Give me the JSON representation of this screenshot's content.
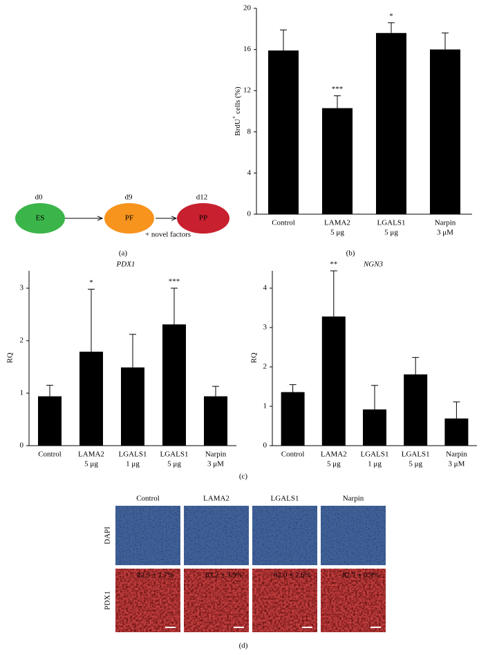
{
  "diagram": {
    "nodes": [
      {
        "label": "ES",
        "day": "d0"
      },
      {
        "label": "PF",
        "day": "d9"
      },
      {
        "label": "PP",
        "day": "d12"
      }
    ],
    "note": "+ novel factors"
  },
  "chart_data": [
    {
      "type": "bar",
      "y_label": [
        "BrdU",
        "+",
        " cells (%)"
      ],
      "categories": [
        [
          "Control"
        ],
        [
          "LAMA2",
          "5 μg"
        ],
        [
          "LGALS1",
          "5 μg"
        ],
        [
          "Narpin",
          "3 μM"
        ]
      ],
      "values": [
        15.9,
        10.3,
        17.6,
        16.0
      ],
      "errors": [
        2.0,
        1.2,
        1.0,
        1.6
      ],
      "annotations": [
        null,
        "***",
        "*",
        null
      ],
      "color": "#000000",
      "ylim": [
        0,
        20
      ],
      "yticks": [
        0,
        4,
        8,
        12,
        16,
        20
      ]
    },
    {
      "type": "bar",
      "title": "PDX1",
      "y_label": "RQ",
      "categories": [
        [
          "Control"
        ],
        [
          "LAMA2",
          "5 μg"
        ],
        [
          "LGALS1",
          "1 μg"
        ],
        [
          "LGALS1",
          "5 μg"
        ],
        [
          "Narpin",
          "3 μM"
        ]
      ],
      "values": [
        0.94,
        1.79,
        1.49,
        2.31,
        0.94
      ],
      "errors": [
        0.21,
        1.19,
        0.63,
        0.69,
        0.19
      ],
      "annotations": [
        null,
        "*",
        null,
        "***",
        null
      ],
      "color": "#000000",
      "ylim": [
        0,
        3.33
      ],
      "yticks": [
        0,
        1,
        2,
        3
      ]
    },
    {
      "type": "bar",
      "title": "NGN3",
      "y_label": "RQ",
      "categories": [
        [
          "Control"
        ],
        [
          "LAMA2",
          "5 μg"
        ],
        [
          "LGALS1",
          "1 μg"
        ],
        [
          "LGALS1",
          "5 μg"
        ],
        [
          "Narpin",
          "3 μM"
        ]
      ],
      "values": [
        1.36,
        3.28,
        0.92,
        1.81,
        0.69
      ],
      "errors": [
        0.19,
        1.16,
        0.61,
        0.43,
        0.42
      ],
      "annotations": [
        null,
        "**",
        null,
        null,
        null
      ],
      "color": "#000000",
      "ylim": [
        0,
        4.44
      ],
      "yticks": [
        0,
        1,
        2,
        3,
        4
      ]
    }
  ],
  "images": {
    "columns": [
      "Control",
      "LAMA2",
      "LGALS1",
      "Narpin"
    ],
    "rows": [
      "DAPI",
      "PDX1"
    ],
    "pdx1_percentages": [
      "82.5 ± 1.7%",
      "83.2 ± 3.9%",
      "82.0 ± 2.6%",
      "82.7 ± 0.9%"
    ]
  },
  "panel_labels": [
    "(a)",
    "(b)",
    "(c)",
    "(d)"
  ]
}
